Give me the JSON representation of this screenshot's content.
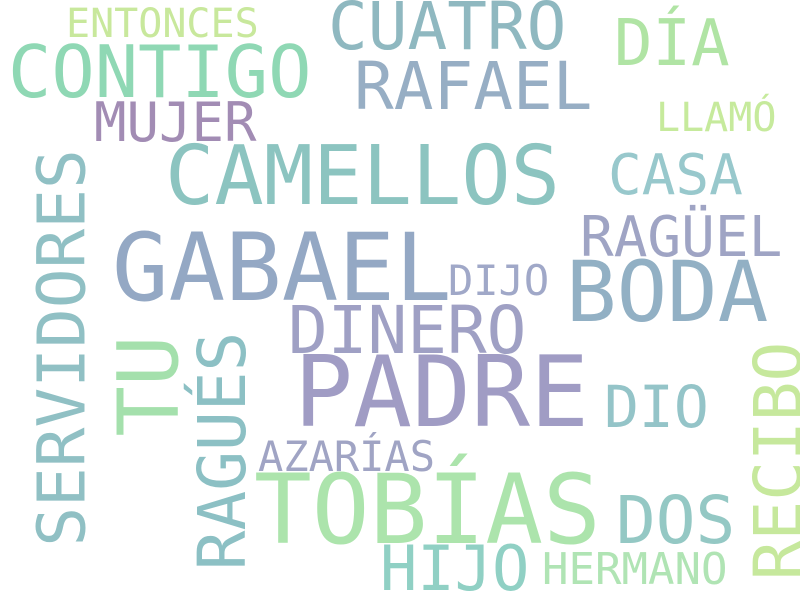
{
  "word_cloud": {
    "words": [
      {
        "text": "ENTONCES",
        "color": "#c8e89c"
      },
      {
        "text": "CUATRO",
        "color": "#8fb8c0"
      },
      {
        "text": "DÍA",
        "color": "#b0e4a4"
      },
      {
        "text": "CONTIGO",
        "color": "#8fd8b4"
      },
      {
        "text": "RAFAEL",
        "color": "#97aec4"
      },
      {
        "text": "MUJER",
        "color": "#a28cb4"
      },
      {
        "text": "LLAMÓ",
        "color": "#c6ea9c"
      },
      {
        "text": "CAMELLOS",
        "color": "#8cc4c0"
      },
      {
        "text": "CASA",
        "color": "#98c8cc"
      },
      {
        "text": "SERVIDORES",
        "color": "#90c0c4"
      },
      {
        "text": "RAGÜEL",
        "color": "#9fa4c4"
      },
      {
        "text": "GABAEL",
        "color": "#94a8c4"
      },
      {
        "text": "DIJO",
        "color": "#a0a8c8"
      },
      {
        "text": "BODA",
        "color": "#92b0c4"
      },
      {
        "text": "DINERO",
        "color": "#9fa0c4"
      },
      {
        "text": "TU",
        "color": "#a4e0ac"
      },
      {
        "text": "RAGUÉS",
        "color": "#8cc0c4"
      },
      {
        "text": "PADRE",
        "color": "#a09cc4"
      },
      {
        "text": "DIO",
        "color": "#94c4c8"
      },
      {
        "text": "RECIBO",
        "color": "#c6e89c"
      },
      {
        "text": "AZARÍAS",
        "color": "#a0a4c4"
      },
      {
        "text": "TOBÍAS",
        "color": "#ace4ac"
      },
      {
        "text": "DOS",
        "color": "#94c8c4"
      },
      {
        "text": "HIJO",
        "color": "#90d0c4"
      },
      {
        "text": "HERMANO",
        "color": "#b0e4b4"
      }
    ]
  }
}
